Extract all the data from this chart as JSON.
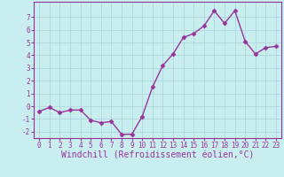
{
  "x": [
    0,
    1,
    2,
    3,
    4,
    5,
    6,
    7,
    8,
    9,
    10,
    11,
    12,
    13,
    14,
    15,
    16,
    17,
    18,
    19,
    20,
    21,
    22,
    23
  ],
  "y": [
    -0.4,
    -0.1,
    -0.5,
    -0.3,
    -0.3,
    -1.1,
    -1.3,
    -1.2,
    -2.2,
    -2.2,
    -0.8,
    1.5,
    3.2,
    4.1,
    5.4,
    5.7,
    6.3,
    7.5,
    6.5,
    7.5,
    5.1,
    4.1,
    4.6,
    4.7
  ],
  "line_color": "#993399",
  "marker": "D",
  "marker_size": 2.5,
  "bg_color": "#c8eef0",
  "grid_color": "#b0d8dc",
  "xlabel": "Windchill (Refroidissement éolien,°C)",
  "ylim": [
    -2.5,
    8.2
  ],
  "xlim": [
    -0.5,
    23.5
  ],
  "yticks": [
    -2,
    -1,
    0,
    1,
    2,
    3,
    4,
    5,
    6,
    7
  ],
  "xticks": [
    0,
    1,
    2,
    3,
    4,
    5,
    6,
    7,
    8,
    9,
    10,
    11,
    12,
    13,
    14,
    15,
    16,
    17,
    18,
    19,
    20,
    21,
    22,
    23
  ],
  "tick_label_fontsize": 5.5,
  "xlabel_fontsize": 7.0,
  "label_color": "#993399",
  "spine_color": "#993399"
}
